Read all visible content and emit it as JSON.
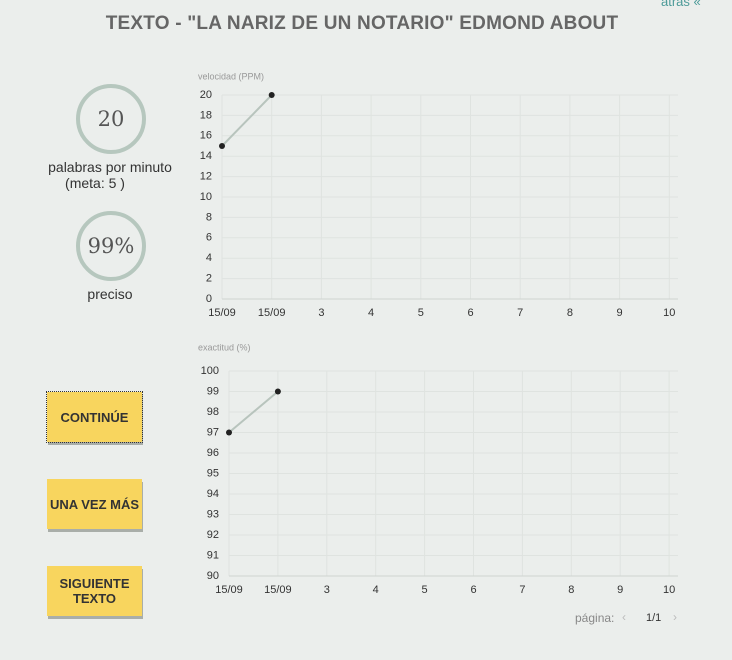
{
  "header": {
    "title": "TEXTO - \"LA NARIZ DE UN NOTARIO\" EDMOND ABOUT",
    "back": "atrás"
  },
  "stats": {
    "speed": 20,
    "speed_label": "palabras por minuto",
    "goal": "(meta: 5 )",
    "accuracy": "99%",
    "accuracy_label": "preciso"
  },
  "buttons": [
    "CONTINÚE",
    "UNA VEZ MÁS",
    "SIGUIENTE TEXTO"
  ],
  "pagination": {
    "label": "página:",
    "current": "1/1"
  },
  "chart_data": [
    {
      "type": "line",
      "y_label": "velocidad (PPM)",
      "color": "#222222",
      "line_color": "#b8c4bd",
      "grid": true,
      "categories": [
        "15/09",
        "15/09",
        "3",
        "4",
        "5",
        "6",
        "7",
        "8",
        "9",
        "10"
      ],
      "values": [
        15,
        20,
        null,
        null,
        null,
        null,
        null,
        null,
        null,
        null
      ],
      "ylim": [
        0,
        20
      ],
      "yticks": [
        0,
        2,
        4,
        6,
        8,
        10,
        12,
        14,
        16,
        18,
        20
      ]
    },
    {
      "type": "line",
      "y_label": "exactitud (%)",
      "color": "#222222",
      "line_color": "#b8c4bd",
      "grid": true,
      "categories": [
        "15/09",
        "15/09",
        "3",
        "4",
        "5",
        "6",
        "7",
        "8",
        "9",
        "10"
      ],
      "values": [
        97,
        99,
        null,
        null,
        null,
        null,
        null,
        null,
        null,
        null
      ],
      "ylim": [
        90,
        100
      ],
      "yticks": [
        90,
        91,
        92,
        93,
        94,
        95,
        96,
        97,
        98,
        99,
        100
      ]
    }
  ]
}
